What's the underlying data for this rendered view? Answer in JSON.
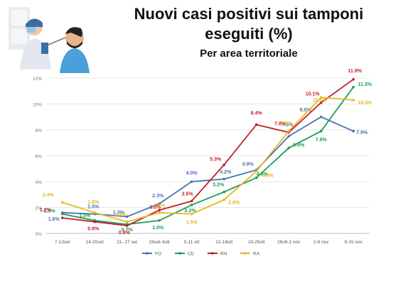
{
  "header": {
    "title_line1": "Nuovi casi positivi sui tamponi",
    "title_line2": "eseguiti (%)",
    "subtitle": "Per area territoriale"
  },
  "chart_data": {
    "type": "line",
    "categories": [
      "7-13set",
      "14-20set",
      "21- 27 set",
      "28set-4ott",
      "5-11 ott",
      "12-18ott",
      "19-25ott",
      "26ott-1 nov",
      "2-8 nov",
      "9-15 nov"
    ],
    "ylim": [
      0,
      12
    ],
    "yticks": [
      "0%",
      "2%",
      "4%",
      "6%",
      "8%",
      "10%",
      "12%"
    ],
    "grid": true,
    "legend_position": "bottom",
    "series": [
      {
        "name": "FO",
        "color": "#4a73b0",
        "values": [
          1.6,
          1.5,
          1.3,
          2.3,
          4.0,
          4.2,
          4.9,
          7.5,
          9.0,
          7.9
        ],
        "labels": [
          "1.6%",
          "1.5%",
          "1.3%",
          "2.3%",
          "4.0%",
          "4.2%",
          "4.9%",
          "7.5%",
          "9.0%",
          "7.9%"
        ]
      },
      {
        "name": "CE",
        "color": "#1a9e55",
        "values": [
          1.5,
          1.0,
          0.7,
          1.0,
          2.2,
          3.2,
          4.3,
          6.6,
          7.9,
          11.3
        ],
        "labels": [
          "1.5%",
          "1.0%",
          "0.7%",
          "1.0%",
          "2.2%",
          "3.2%",
          "4.3%",
          "6.6%",
          "7.9%",
          "11.3%"
        ]
      },
      {
        "name": "RN",
        "color": "#c0202a",
        "values": [
          1.2,
          0.9,
          0.6,
          1.8,
          2.5,
          5.3,
          8.4,
          7.8,
          10.1,
          11.9
        ],
        "labels": [
          "1.2%",
          "0.9%",
          "0.6%",
          "1.8%",
          "2.5%",
          "5.3%",
          "8.4%",
          "7.8%",
          "10.1%",
          "11.9%"
        ]
      },
      {
        "name": "RA",
        "color": "#e8b81f",
        "values": [
          2.4,
          1.6,
          0.9,
          1.6,
          1.5,
          2.6,
          4.8,
          7.9,
          10.5,
          10.3
        ],
        "labels": [
          "2.4%",
          "1.6%",
          "0.9%",
          "1.6%",
          "1.5%",
          "2.6%",
          "4.8%",
          "7.9%",
          "10.5%",
          "10.3%"
        ]
      }
    ]
  }
}
